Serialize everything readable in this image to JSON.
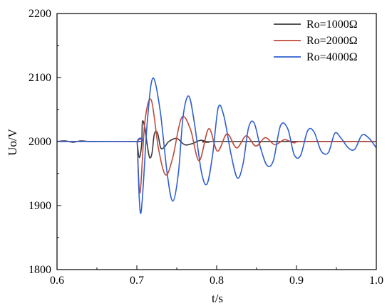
{
  "chart_data": {
    "type": "line",
    "title": "",
    "xlabel": "t/s",
    "ylabel": "Uo/V",
    "xlim": [
      0.6,
      1.0
    ],
    "ylim": [
      1800,
      2200
    ],
    "xticks": [
      0.6,
      0.7,
      0.8,
      0.9,
      1.0
    ],
    "xtick_labels": [
      "0.6",
      "0.7",
      "0.8",
      "0.9",
      "1.0"
    ],
    "yticks": [
      1800,
      1900,
      2000,
      2100,
      2200
    ],
    "ytick_labels": [
      "1800",
      "1900",
      "2000",
      "2100",
      "2200"
    ],
    "grid": false,
    "legend_position": "top-right",
    "series": [
      {
        "name": "Ro=1000Ω",
        "color": "#3a3a3a",
        "x": [
          0.6,
          0.61,
          0.62,
          0.63,
          0.64,
          0.65,
          0.7,
          0.7005,
          0.703,
          0.706,
          0.707,
          0.71,
          0.713,
          0.716,
          0.719,
          0.722,
          0.726,
          0.73,
          0.735,
          0.74,
          0.75,
          0.76,
          0.77,
          0.78,
          0.79,
          0.8,
          1.0
        ],
        "y": [
          2000,
          2001,
          1999,
          2001,
          2000,
          2000,
          2000,
          1998,
          1975,
          1995,
          2031,
          2022,
          1995,
          1975,
          1982,
          2012,
          2013,
          1990,
          1992,
          2000,
          2005,
          1995,
          1997,
          2002,
          1999,
          2000,
          2000
        ]
      },
      {
        "name": "Ro=2000Ω",
        "color": "#c04a3a",
        "x": [
          0.6,
          0.7,
          0.7005,
          0.704,
          0.71,
          0.718,
          0.727,
          0.736,
          0.745,
          0.756,
          0.767,
          0.778,
          0.79,
          0.801,
          0.813,
          0.825,
          0.837,
          0.849,
          0.861,
          0.873,
          0.885,
          0.897,
          0.909,
          1.0
        ],
        "y": [
          2000,
          2000,
          1997,
          1920,
          2030,
          2065,
          1990,
          1948,
          1975,
          2037,
          2020,
          1970,
          2020,
          1985,
          2012,
          1990,
          2009,
          1993,
          2006,
          1995,
          2003,
          1998,
          2000,
          2000
        ]
      },
      {
        "name": "Ro=4000Ω",
        "color": "#2f5fd0",
        "x": [
          0.6,
          0.7,
          0.7005,
          0.705,
          0.713,
          0.72,
          0.729,
          0.738,
          0.745,
          0.752,
          0.758,
          0.765,
          0.772,
          0.781,
          0.788,
          0.795,
          0.802,
          0.809,
          0.818,
          0.826,
          0.833,
          0.84,
          0.847,
          0.855,
          0.863,
          0.871,
          0.88,
          0.889,
          0.897,
          0.905,
          0.914,
          0.922,
          0.931,
          0.94,
          0.948,
          0.956,
          0.965,
          0.973,
          0.982,
          0.991,
          1.0
        ],
        "y": [
          2000,
          2000,
          1996,
          1888,
          2030,
          2099,
          2050,
          1950,
          1907,
          1950,
          2040,
          2071,
          2030,
          1952,
          1934,
          1980,
          2053,
          2040,
          1980,
          1943,
          1965,
          2022,
          2029,
          1990,
          1963,
          1970,
          2025,
          2020,
          1980,
          1978,
          2017,
          2015,
          1985,
          1983,
          2013,
          2005,
          1990,
          1988,
          2010,
          2005,
          1990
        ]
      }
    ]
  }
}
